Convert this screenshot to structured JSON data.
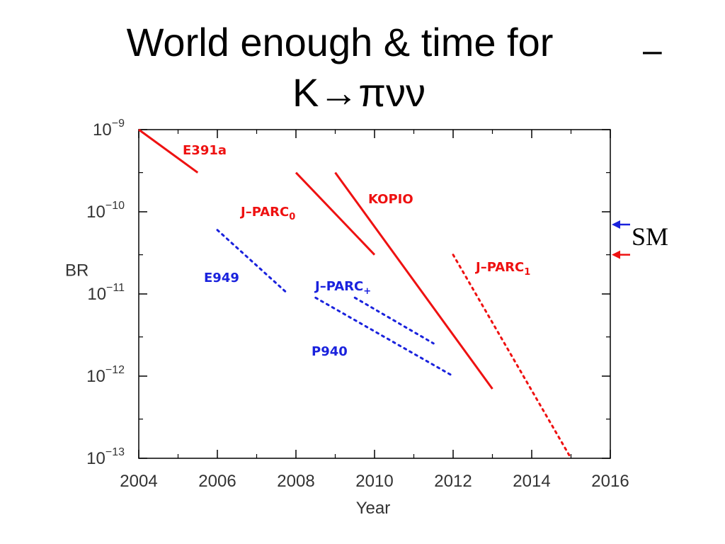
{
  "title": {
    "line1": "World enough & time for",
    "line2": "K→πνν",
    "overbar": "–"
  },
  "colors": {
    "red": "#ee1111",
    "blue": "#1a22dd",
    "axis": "#000000"
  },
  "chart_data": {
    "type": "line",
    "xlabel": "Year",
    "ylabel": "BR",
    "xlim": [
      2004,
      2016
    ],
    "ylim": [
      1e-13,
      1e-09
    ],
    "yscale": "log",
    "x_ticks": [
      "2004",
      "2006",
      "2008",
      "2010",
      "2012",
      "2014",
      "2016"
    ],
    "y_ticks": [
      {
        "base": "10",
        "exp": "−9",
        "value": 1e-09
      },
      {
        "base": "10",
        "exp": "−10",
        "value": 1e-10
      },
      {
        "base": "10",
        "exp": "−11",
        "value": 1e-11
      },
      {
        "base": "10",
        "exp": "−12",
        "value": 1e-12
      },
      {
        "base": "10",
        "exp": "−13",
        "value": 1e-13
      }
    ],
    "series": [
      {
        "name": "E391a",
        "color": "red",
        "style": "solid",
        "x": [
          2004.0,
          2005.5
        ],
        "y": [
          1e-09,
          3e-10
        ]
      },
      {
        "name": "J–PARC",
        "sub": "0",
        "color": "red",
        "style": "solid",
        "x": [
          2008.0,
          2010.0
        ],
        "y": [
          3e-10,
          3e-11
        ]
      },
      {
        "name": "KOPIO",
        "color": "red",
        "style": "solid",
        "x": [
          2009.0,
          2013.0
        ],
        "y": [
          3e-10,
          7e-13
        ]
      },
      {
        "name": "J–PARC",
        "sub": "1",
        "color": "red",
        "style": "dotted",
        "x": [
          2012.0,
          2015.0
        ],
        "y": [
          3e-11,
          1e-13
        ]
      },
      {
        "name": "E949",
        "color": "blue",
        "style": "dotted",
        "x": [
          2006.0,
          2007.8
        ],
        "y": [
          6e-11,
          1e-11
        ]
      },
      {
        "name": "J–PARC",
        "sub": "+",
        "color": "blue",
        "style": "dotted",
        "x": [
          2009.5,
          2011.5
        ],
        "y": [
          9e-12,
          2.5e-12
        ]
      },
      {
        "name": "P940",
        "color": "blue",
        "style": "dotted",
        "x": [
          2008.5,
          2012.0
        ],
        "y": [
          9e-12,
          1e-12
        ]
      }
    ],
    "reference": {
      "label": "SM",
      "markers": [
        {
          "color": "blue",
          "y": 7e-11
        },
        {
          "color": "red",
          "y": 3e-11
        }
      ]
    }
  }
}
